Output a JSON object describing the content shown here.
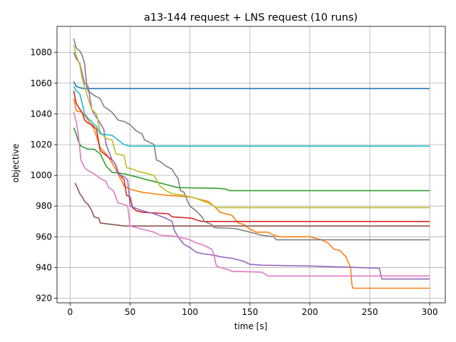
{
  "chart_data": {
    "type": "line",
    "title": "a13-144 request + LNS request (10 runs)",
    "xlabel": "time [s]",
    "ylabel": "objective",
    "xlim": [
      -11,
      313
    ],
    "ylim": [
      917,
      1097
    ],
    "xticks": [
      0,
      50,
      100,
      150,
      200,
      250,
      300
    ],
    "yticks": [
      920,
      940,
      960,
      980,
      1000,
      1020,
      1040,
      1060,
      1080
    ],
    "grid": true,
    "legend": "none",
    "series": [
      {
        "color": "#1f77b4",
        "points": [
          [
            3,
            1061
          ],
          [
            5,
            1058
          ],
          [
            8,
            1057
          ],
          [
            12,
            1056.5
          ],
          [
            300,
            1056.5
          ]
        ]
      },
      {
        "color": "#ff7f0e",
        "points": [
          [
            3,
            1050
          ],
          [
            5,
            1042
          ],
          [
            10,
            1041
          ],
          [
            15,
            1036
          ],
          [
            20,
            1030
          ],
          [
            25,
            1018
          ],
          [
            30,
            1014
          ],
          [
            35,
            1008
          ],
          [
            40,
            1001
          ],
          [
            45,
            993
          ],
          [
            50,
            991
          ],
          [
            60,
            989
          ],
          [
            70,
            988
          ],
          [
            80,
            987
          ],
          [
            100,
            986
          ],
          [
            110,
            984
          ],
          [
            115,
            983
          ],
          [
            120,
            980
          ],
          [
            125,
            976
          ],
          [
            130,
            975
          ],
          [
            135,
            974
          ],
          [
            140,
            969
          ],
          [
            145,
            968
          ],
          [
            150,
            965
          ],
          [
            155,
            963
          ],
          [
            165,
            963
          ],
          [
            170,
            961
          ],
          [
            175,
            960
          ],
          [
            200,
            960
          ],
          [
            210,
            958
          ],
          [
            215,
            956
          ],
          [
            220,
            952
          ],
          [
            225,
            951
          ],
          [
            230,
            947
          ],
          [
            234,
            940
          ],
          [
            235,
            929
          ],
          [
            236,
            926.5
          ],
          [
            300,
            926.5
          ]
        ]
      },
      {
        "color": "#2ca02c",
        "points": [
          [
            3,
            1031
          ],
          [
            5,
            1027
          ],
          [
            7,
            1022
          ],
          [
            9,
            1019
          ],
          [
            12,
            1018
          ],
          [
            15,
            1017
          ],
          [
            20,
            1017
          ],
          [
            25,
            1014
          ],
          [
            30,
            1006
          ],
          [
            35,
            1002
          ],
          [
            45,
            1001
          ],
          [
            55,
            999
          ],
          [
            60,
            998
          ],
          [
            65,
            997
          ],
          [
            70,
            996
          ],
          [
            80,
            994
          ],
          [
            85,
            993
          ],
          [
            90,
            992
          ],
          [
            125,
            991.5
          ],
          [
            130,
            991
          ],
          [
            133,
            990
          ],
          [
            300,
            990
          ]
        ]
      },
      {
        "color": "#d62728",
        "points": [
          [
            3,
            1055
          ],
          [
            5,
            1047
          ],
          [
            8,
            1043
          ],
          [
            10,
            1041
          ],
          [
            12,
            1036
          ],
          [
            15,
            1034
          ],
          [
            18,
            1033
          ],
          [
            22,
            1030
          ],
          [
            25,
            1016
          ],
          [
            30,
            1013
          ],
          [
            35,
            1010
          ],
          [
            38,
            1007
          ],
          [
            40,
            1002
          ],
          [
            45,
            997
          ],
          [
            47,
            987
          ],
          [
            50,
            986
          ],
          [
            52,
            979
          ],
          [
            55,
            977
          ],
          [
            60,
            976
          ],
          [
            70,
            975.5
          ],
          [
            82,
            975
          ],
          [
            85,
            973
          ],
          [
            95,
            972.5
          ],
          [
            102,
            972
          ],
          [
            105,
            971
          ],
          [
            110,
            970
          ],
          [
            300,
            970
          ]
        ]
      },
      {
        "color": "#9467bd",
        "points": [
          [
            3,
            1080
          ],
          [
            5,
            1076
          ],
          [
            8,
            1073
          ],
          [
            12,
            1060
          ],
          [
            15,
            1058
          ],
          [
            18,
            1043
          ],
          [
            20,
            1040
          ],
          [
            25,
            1034
          ],
          [
            28,
            1030
          ],
          [
            30,
            1020
          ],
          [
            35,
            1010
          ],
          [
            38,
            1007
          ],
          [
            40,
            1001
          ],
          [
            45,
            999
          ],
          [
            48,
            997
          ],
          [
            50,
            980
          ],
          [
            60,
            977
          ],
          [
            70,
            975
          ],
          [
            80,
            972
          ],
          [
            85,
            970
          ],
          [
            87,
            964
          ],
          [
            90,
            960
          ],
          [
            95,
            955
          ],
          [
            100,
            953
          ],
          [
            105,
            950
          ],
          [
            110,
            949
          ],
          [
            120,
            948
          ],
          [
            125,
            947
          ],
          [
            135,
            946
          ],
          [
            140,
            945
          ],
          [
            145,
            944
          ],
          [
            150,
            942
          ],
          [
            160,
            941.5
          ],
          [
            200,
            941
          ],
          [
            258,
            939.5
          ],
          [
            260,
            932.5
          ],
          [
            300,
            932.5
          ]
        ]
      },
      {
        "color": "#8c564b",
        "points": [
          [
            4,
            995
          ],
          [
            6,
            992
          ],
          [
            8,
            988
          ],
          [
            10,
            986
          ],
          [
            12,
            983
          ],
          [
            15,
            981
          ],
          [
            18,
            977
          ],
          [
            20,
            973
          ],
          [
            24,
            972
          ],
          [
            25,
            969
          ],
          [
            35,
            968
          ],
          [
            40,
            967.5
          ],
          [
            45,
            967
          ],
          [
            300,
            967
          ]
        ]
      },
      {
        "color": "#e377c2",
        "points": [
          [
            3,
            1041
          ],
          [
            5,
            1035
          ],
          [
            7,
            1025
          ],
          [
            9,
            1010
          ],
          [
            12,
            1005
          ],
          [
            15,
            1003
          ],
          [
            20,
            1001
          ],
          [
            25,
            998
          ],
          [
            30,
            996
          ],
          [
            32,
            992
          ],
          [
            36,
            990
          ],
          [
            40,
            982
          ],
          [
            45,
            981
          ],
          [
            48,
            980
          ],
          [
            50,
            967
          ],
          [
            55,
            966
          ],
          [
            60,
            965
          ],
          [
            70,
            963
          ],
          [
            75,
            961
          ],
          [
            85,
            960.5
          ],
          [
            95,
            959
          ],
          [
            100,
            958
          ],
          [
            105,
            956
          ],
          [
            110,
            955
          ],
          [
            118,
            952
          ],
          [
            120,
            948
          ],
          [
            122,
            941
          ],
          [
            125,
            940
          ],
          [
            130,
            939
          ],
          [
            135,
            937.5
          ],
          [
            160,
            937
          ],
          [
            165,
            934.5
          ],
          [
            300,
            934.5
          ]
        ]
      },
      {
        "color": "#7f7f7f",
        "points": [
          [
            3,
            1089
          ],
          [
            5,
            1083
          ],
          [
            8,
            1081
          ],
          [
            10,
            1078
          ],
          [
            12,
            1073
          ],
          [
            14,
            1057
          ],
          [
            15,
            1055
          ],
          [
            20,
            1052
          ],
          [
            25,
            1050
          ],
          [
            28,
            1045
          ],
          [
            35,
            1041
          ],
          [
            40,
            1036
          ],
          [
            45,
            1035
          ],
          [
            50,
            1033
          ],
          [
            55,
            1029
          ],
          [
            60,
            1027
          ],
          [
            62,
            1023
          ],
          [
            65,
            1022
          ],
          [
            70,
            1020
          ],
          [
            72,
            1010
          ],
          [
            75,
            1009
          ],
          [
            80,
            1006
          ],
          [
            85,
            1004
          ],
          [
            88,
            1000
          ],
          [
            90,
            998
          ],
          [
            92,
            990
          ],
          [
            95,
            989
          ],
          [
            98,
            983
          ],
          [
            100,
            980
          ],
          [
            105,
            977
          ],
          [
            110,
            973
          ],
          [
            112,
            970
          ],
          [
            118,
            968
          ],
          [
            120,
            966
          ],
          [
            135,
            965.5
          ],
          [
            140,
            965
          ],
          [
            145,
            964
          ],
          [
            155,
            962
          ],
          [
            160,
            961
          ],
          [
            170,
            960
          ],
          [
            172,
            958
          ],
          [
            300,
            958
          ]
        ]
      },
      {
        "color": "#bcbd22",
        "points": [
          [
            3,
            1085
          ],
          [
            5,
            1078
          ],
          [
            8,
            1072
          ],
          [
            10,
            1063
          ],
          [
            15,
            1050
          ],
          [
            18,
            1043
          ],
          [
            22,
            1040
          ],
          [
            25,
            1028
          ],
          [
            30,
            1024
          ],
          [
            35,
            1023
          ],
          [
            38,
            1014
          ],
          [
            45,
            1013
          ],
          [
            47,
            1005
          ],
          [
            52,
            1004
          ],
          [
            55,
            1003
          ],
          [
            60,
            1002
          ],
          [
            70,
            1000
          ],
          [
            75,
            993
          ],
          [
            80,
            990
          ],
          [
            85,
            988
          ],
          [
            95,
            987
          ],
          [
            105,
            985
          ],
          [
            115,
            982
          ],
          [
            120,
            980
          ],
          [
            122,
            979
          ],
          [
            300,
            979
          ]
        ]
      },
      {
        "color": "#17becf",
        "points": [
          [
            3,
            1058
          ],
          [
            5,
            1055
          ],
          [
            8,
            1053
          ],
          [
            10,
            1047
          ],
          [
            12,
            1040
          ],
          [
            15,
            1037
          ],
          [
            18,
            1035
          ],
          [
            20,
            1033
          ],
          [
            22,
            1032
          ],
          [
            25,
            1027
          ],
          [
            35,
            1026
          ],
          [
            40,
            1023
          ],
          [
            45,
            1020
          ],
          [
            50,
            1019
          ],
          [
            300,
            1019
          ]
        ]
      }
    ]
  }
}
